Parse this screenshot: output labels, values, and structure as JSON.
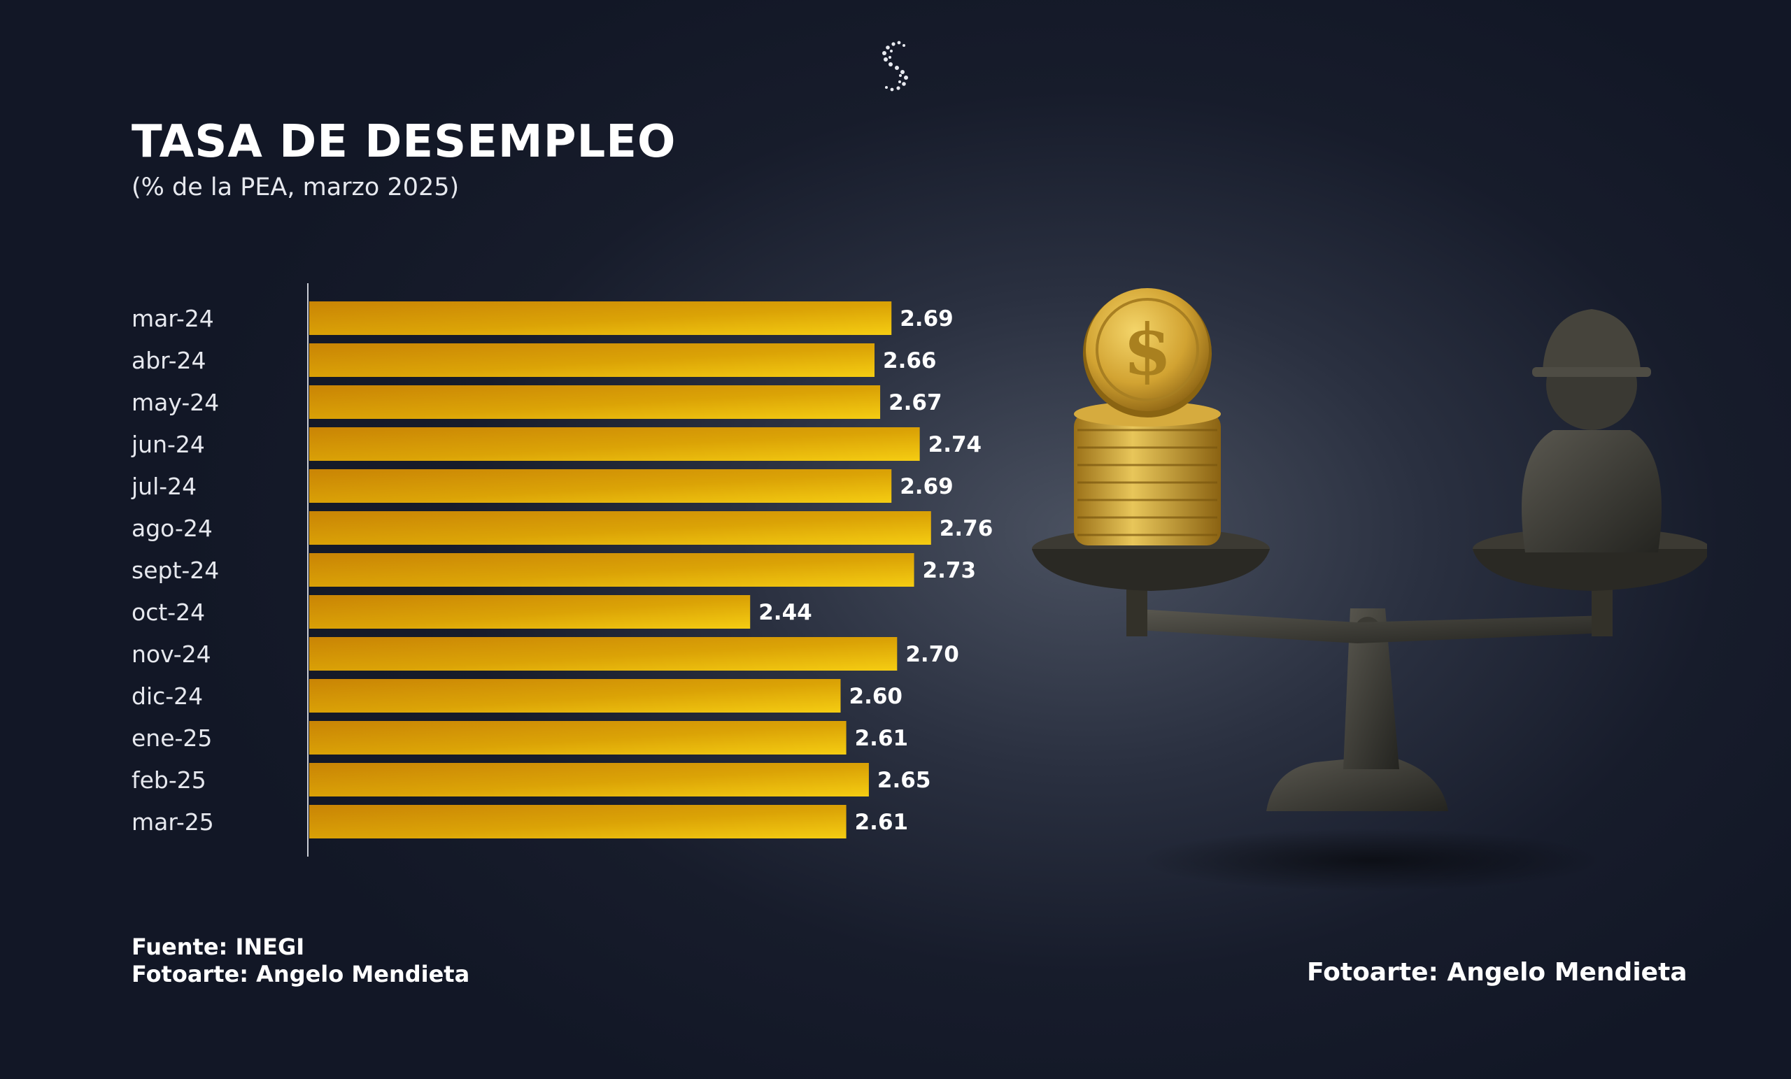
{
  "header": {
    "title": "TASA DE DESEMPLEO",
    "subtitle": "(% de la PEA, marzo 2025)"
  },
  "chart_data": {
    "type": "bar",
    "orientation": "horizontal",
    "categories": [
      "mar-24",
      "abr-24",
      "may-24",
      "jun-24",
      "jul-24",
      "ago-24",
      "sept-24",
      "oct-24",
      "nov-24",
      "dic-24",
      "ene-25",
      "feb-25",
      "mar-25"
    ],
    "values": [
      2.69,
      2.66,
      2.67,
      2.74,
      2.69,
      2.76,
      2.73,
      2.44,
      2.7,
      2.6,
      2.61,
      2.65,
      2.61
    ],
    "value_labels": [
      "2.69",
      "2.66",
      "2.67",
      "2.74",
      "2.69",
      "2.76",
      "2.73",
      "2.44",
      "2.70",
      "2.60",
      "2.61",
      "2.65",
      "2.61"
    ],
    "title": "TASA DE DESEMPLEO",
    "subtitle": "(% de la PEA, marzo 2025)",
    "xlim": [
      1.66,
      2.76
    ],
    "grid": false,
    "legend": "none",
    "colors": {
      "bar_start": "#c98405",
      "bar_end": "#f5cd12",
      "label": "#ffffff"
    }
  },
  "footer": {
    "source": "Fuente: INEGI",
    "credit_left": "Fotoarte: Angelo Mendieta",
    "credit_right": "Fotoarte: Angelo Mendieta"
  },
  "illustration": {
    "coin_symbol": "$"
  },
  "logo": {
    "icon": "swirl-s-logo-icon"
  }
}
